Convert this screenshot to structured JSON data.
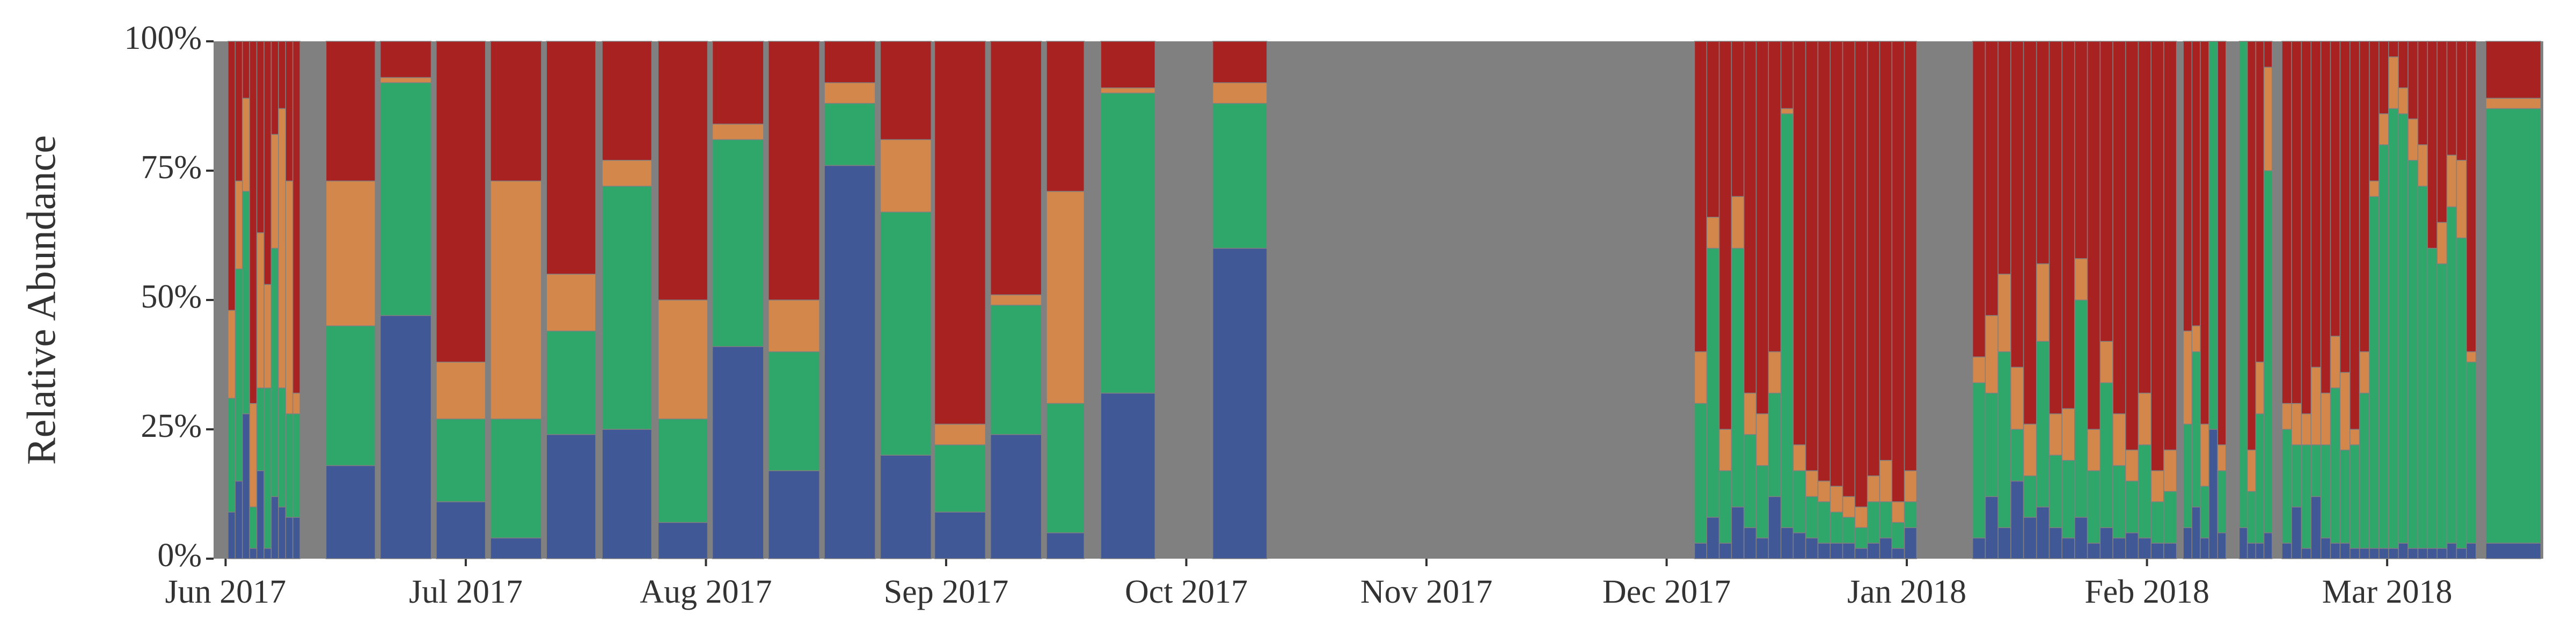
{
  "chart_data": {
    "type": "stacked_bar",
    "y_label": "Relative Abundance",
    "background": "#808080",
    "ylim": [
      0,
      100
    ],
    "yticks": [
      {
        "value": 0,
        "label": "0%"
      },
      {
        "value": 25,
        "label": "25%"
      },
      {
        "value": 50,
        "label": "50%"
      },
      {
        "value": 75,
        "label": "75%"
      },
      {
        "value": 100,
        "label": "100%"
      }
    ],
    "xlim": [
      -0.05,
      9.65
    ],
    "xticks": [
      {
        "value": 0,
        "label": "Jun 2017"
      },
      {
        "value": 1,
        "label": "Jul 2017"
      },
      {
        "value": 2,
        "label": "Aug 2017"
      },
      {
        "value": 3,
        "label": "Sep 2017"
      },
      {
        "value": 4,
        "label": "Oct 2017"
      },
      {
        "value": 5,
        "label": "Nov 2017"
      },
      {
        "value": 6,
        "label": "Dec 2017"
      },
      {
        "value": 7,
        "label": "Jan 2018"
      },
      {
        "value": 8,
        "label": "Feb 2018"
      },
      {
        "value": 9,
        "label": "Mar 2018"
      }
    ],
    "x": [
      0.01,
      0.04,
      0.07,
      0.1,
      0.13,
      0.16,
      0.19,
      0.22,
      0.25,
      0.28,
      0.418,
      0.644,
      0.877,
      1.103,
      1.336,
      1.568,
      1.801,
      2.027,
      2.26,
      2.493,
      2.726,
      2.952,
      3.185,
      3.418,
      3.644,
      4.11,
      6.116,
      6.167,
      6.219,
      6.27,
      6.322,
      6.373,
      6.424,
      6.476,
      6.527,
      6.579,
      6.63,
      6.681,
      6.733,
      6.784,
      6.836,
      6.887,
      6.938,
      6.99,
      7.274,
      7.327,
      7.38,
      7.433,
      7.486,
      7.54,
      7.593,
      7.646,
      7.699,
      7.752,
      7.805,
      7.858,
      7.911,
      7.964,
      8.017,
      8.07,
      8.151,
      8.187,
      8.222,
      8.258,
      8.294,
      8.384,
      8.418,
      8.453,
      8.487,
      8.562,
      8.602,
      8.643,
      8.683,
      8.724,
      8.764,
      8.804,
      8.845,
      8.885,
      8.926,
      8.966,
      9.006,
      9.047,
      9.087,
      9.128,
      9.168,
      9.208,
      9.249,
      9.289,
      9.33,
      9.411
    ],
    "x_end": [
      0.04,
      0.07,
      0.1,
      0.13,
      0.16,
      0.19,
      0.22,
      0.25,
      0.28,
      0.31,
      0.623,
      0.856,
      1.082,
      1.315,
      1.541,
      1.774,
      2.007,
      2.24,
      2.473,
      2.705,
      2.938,
      3.164,
      3.397,
      3.575,
      3.87,
      4.336,
      6.167,
      6.219,
      6.27,
      6.322,
      6.373,
      6.424,
      6.476,
      6.527,
      6.579,
      6.63,
      6.681,
      6.733,
      6.784,
      6.836,
      6.887,
      6.938,
      6.99,
      7.041,
      7.327,
      7.38,
      7.433,
      7.486,
      7.54,
      7.593,
      7.646,
      7.699,
      7.752,
      7.805,
      7.858,
      7.911,
      7.964,
      8.017,
      8.07,
      8.123,
      8.187,
      8.222,
      8.258,
      8.294,
      8.329,
      8.418,
      8.453,
      8.487,
      8.521,
      8.602,
      8.643,
      8.683,
      8.724,
      8.764,
      8.804,
      8.845,
      8.885,
      8.926,
      8.966,
      9.006,
      9.047,
      9.087,
      9.128,
      9.168,
      9.208,
      9.249,
      9.289,
      9.33,
      9.37,
      9.64
    ],
    "series": [
      {
        "color": "#415896",
        "values": [
          9,
          15,
          28,
          2,
          17,
          2,
          12,
          10,
          8,
          8,
          18,
          47,
          11,
          4,
          24,
          25,
          7,
          41,
          17,
          76,
          20,
          9,
          24,
          5,
          32,
          60,
          3,
          8,
          3,
          10,
          6,
          4,
          12,
          6,
          5,
          4,
          3,
          3,
          3,
          2,
          3,
          4,
          2,
          6,
          4,
          12,
          6,
          15,
          8,
          10,
          6,
          4,
          8,
          3,
          6,
          4,
          5,
          4,
          3,
          3,
          6,
          10,
          4,
          25,
          5,
          6,
          3,
          3,
          5,
          3,
          10,
          2,
          12,
          4,
          3,
          3,
          2,
          2,
          2,
          2,
          2,
          3,
          2,
          2,
          2,
          2,
          3,
          2,
          3,
          3
        ]
      },
      {
        "color": "#2fa66a",
        "values": [
          22,
          41,
          43,
          8,
          16,
          31,
          48,
          23,
          20,
          20,
          27,
          45,
          16,
          23,
          20,
          47,
          20,
          40,
          23,
          12,
          47,
          13,
          25,
          25,
          58,
          28,
          27,
          52,
          14,
          50,
          18,
          14,
          20,
          80,
          12,
          8,
          8,
          6,
          5,
          4,
          8,
          7,
          5,
          5,
          30,
          20,
          34,
          10,
          8,
          32,
          14,
          15,
          42,
          14,
          28,
          14,
          10,
          18,
          8,
          10,
          20,
          30,
          10,
          75,
          12,
          94,
          10,
          25,
          70,
          22,
          12,
          20,
          10,
          18,
          30,
          18,
          20,
          30,
          68,
          78,
          85,
          83,
          75,
          70,
          58,
          55,
          65,
          60,
          35,
          84
        ]
      },
      {
        "color": "#d4874b",
        "values": [
          17,
          17,
          18,
          20,
          30,
          20,
          22,
          54,
          45,
          4,
          28,
          1,
          11,
          46,
          11,
          5,
          23,
          3,
          10,
          4,
          14,
          4,
          2,
          41,
          1,
          4,
          10,
          6,
          8,
          10,
          8,
          10,
          8,
          1,
          5,
          5,
          4,
          5,
          4,
          4,
          5,
          8,
          4,
          6,
          5,
          15,
          15,
          12,
          10,
          15,
          8,
          10,
          8,
          8,
          8,
          10,
          6,
          10,
          6,
          8,
          18,
          5,
          12,
          0,
          5,
          0,
          8,
          10,
          20,
          5,
          8,
          6,
          15,
          10,
          10,
          15,
          3,
          8,
          3,
          6,
          10,
          5,
          8,
          8,
          0,
          8,
          10,
          15,
          2,
          2
        ]
      },
      {
        "color": "#a92222",
        "values": [
          52,
          27,
          11,
          70,
          37,
          47,
          18,
          13,
          27,
          68,
          27,
          7,
          62,
          27,
          45,
          23,
          50,
          16,
          50,
          8,
          19,
          74,
          49,
          29,
          9,
          8,
          60,
          34,
          75,
          30,
          68,
          72,
          60,
          13,
          78,
          83,
          85,
          86,
          88,
          90,
          84,
          81,
          89,
          83,
          61,
          53,
          45,
          63,
          74,
          43,
          72,
          71,
          42,
          75,
          58,
          72,
          79,
          68,
          83,
          79,
          56,
          55,
          74,
          0,
          78,
          0,
          79,
          62,
          5,
          70,
          70,
          72,
          63,
          68,
          57,
          64,
          75,
          60,
          27,
          14,
          3,
          9,
          15,
          20,
          40,
          35,
          22,
          23,
          60,
          11
        ]
      }
    ]
  }
}
